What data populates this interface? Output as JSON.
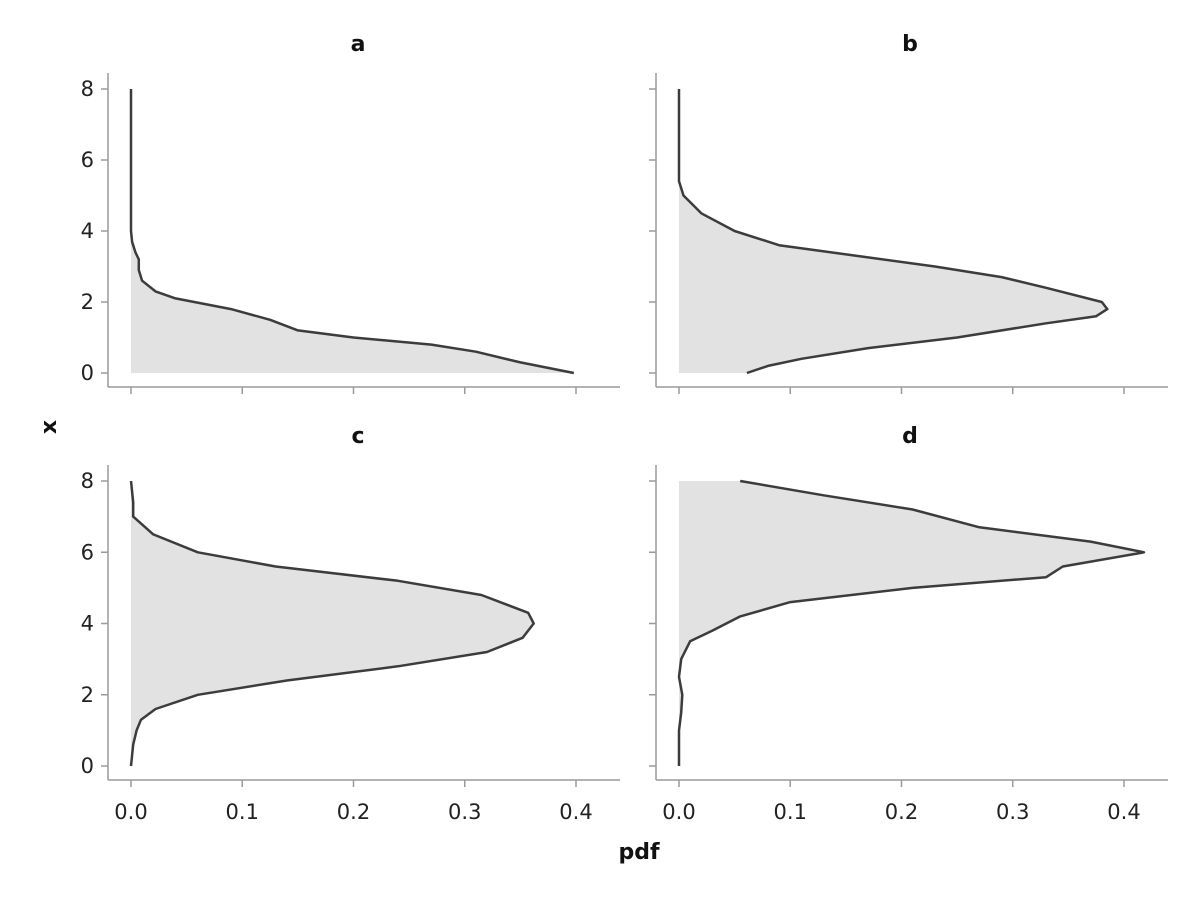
{
  "chart_data": {
    "type": "area",
    "orientation": "horizontal-density",
    "xlabel": "pdf",
    "ylabel": "x",
    "xlim": [
      0.0,
      0.4
    ],
    "ylim": [
      0,
      8
    ],
    "xticks": [
      "0.0",
      "0.1",
      "0.2",
      "0.3",
      "0.4"
    ],
    "yticks": [
      "0",
      "2",
      "4",
      "6",
      "8"
    ],
    "grid": false,
    "colors": {
      "fill": "#e2e2e2",
      "line": "#3c3c3c",
      "axis": "#9a9a9a"
    },
    "panels": [
      {
        "title": "a",
        "curve": [
          [
            0.0,
            0.398
          ],
          [
            0.3,
            0.35
          ],
          [
            0.6,
            0.31
          ],
          [
            0.8,
            0.27
          ],
          [
            1.0,
            0.2
          ],
          [
            1.2,
            0.15
          ],
          [
            1.5,
            0.125
          ],
          [
            1.8,
            0.09
          ],
          [
            2.1,
            0.04
          ],
          [
            2.3,
            0.022
          ],
          [
            2.6,
            0.01
          ],
          [
            2.9,
            0.007
          ],
          [
            3.2,
            0.007
          ],
          [
            3.4,
            0.004
          ],
          [
            3.7,
            0.001
          ],
          [
            4.0,
            0.0
          ],
          [
            6.0,
            0.0
          ],
          [
            8.0,
            0.0
          ]
        ]
      },
      {
        "title": "b",
        "curve": [
          [
            0.0,
            0.061
          ],
          [
            0.2,
            0.08
          ],
          [
            0.4,
            0.11
          ],
          [
            0.7,
            0.17
          ],
          [
            1.0,
            0.25
          ],
          [
            1.4,
            0.33
          ],
          [
            1.6,
            0.375
          ],
          [
            1.8,
            0.385
          ],
          [
            2.0,
            0.38
          ],
          [
            2.4,
            0.33
          ],
          [
            2.7,
            0.29
          ],
          [
            3.0,
            0.23
          ],
          [
            3.3,
            0.16
          ],
          [
            3.6,
            0.09
          ],
          [
            4.0,
            0.05
          ],
          [
            4.5,
            0.02
          ],
          [
            5.0,
            0.004
          ],
          [
            5.4,
            0.0
          ],
          [
            8.0,
            0.0
          ]
        ]
      },
      {
        "title": "c",
        "curve": [
          [
            0.0,
            0.0
          ],
          [
            0.3,
            0.001
          ],
          [
            0.6,
            0.002
          ],
          [
            1.0,
            0.005
          ],
          [
            1.3,
            0.009
          ],
          [
            1.6,
            0.022
          ],
          [
            2.0,
            0.06
          ],
          [
            2.4,
            0.14
          ],
          [
            2.8,
            0.24
          ],
          [
            3.2,
            0.32
          ],
          [
            3.6,
            0.352
          ],
          [
            4.0,
            0.362
          ],
          [
            4.3,
            0.357
          ],
          [
            4.8,
            0.315
          ],
          [
            5.2,
            0.24
          ],
          [
            5.6,
            0.13
          ],
          [
            6.0,
            0.06
          ],
          [
            6.5,
            0.02
          ],
          [
            7.0,
            0.002
          ],
          [
            7.4,
            0.002
          ],
          [
            8.0,
            0.0
          ]
        ]
      },
      {
        "title": "d",
        "curve": [
          [
            0.0,
            0.0
          ],
          [
            1.0,
            0.0
          ],
          [
            1.5,
            0.002
          ],
          [
            2.0,
            0.003
          ],
          [
            2.5,
            0.0
          ],
          [
            3.0,
            0.002
          ],
          [
            3.5,
            0.01
          ],
          [
            3.8,
            0.03
          ],
          [
            4.2,
            0.055
          ],
          [
            4.6,
            0.1
          ],
          [
            5.0,
            0.21
          ],
          [
            5.3,
            0.33
          ],
          [
            5.6,
            0.345
          ],
          [
            6.0,
            0.418
          ],
          [
            6.3,
            0.37
          ],
          [
            6.7,
            0.27
          ],
          [
            7.2,
            0.21
          ],
          [
            7.6,
            0.13
          ],
          [
            8.0,
            0.055
          ]
        ]
      }
    ]
  }
}
